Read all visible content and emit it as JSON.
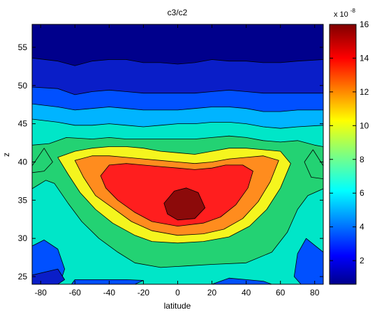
{
  "chart_data": {
    "type": "contourf",
    "title": "c3/c2",
    "xlabel": "latitude",
    "ylabel": "z",
    "xlim": [
      -85,
      85
    ],
    "ylim": [
      24,
      58
    ],
    "x_ticks": [
      -80,
      -60,
      -40,
      -20,
      0,
      20,
      40,
      60,
      80
    ],
    "y_ticks": [
      25,
      30,
      35,
      40,
      45,
      50,
      55
    ],
    "colorbar": {
      "range": [
        0.6,
        16
      ],
      "ticks": [
        2,
        4,
        6,
        8,
        10,
        12,
        14,
        16
      ],
      "exponent_label": "x 10",
      "exponent": "-8",
      "colormap": "jet"
    },
    "grid": false,
    "levels": [
      {
        "value": 1.5,
        "color": "#0a1ec8"
      },
      {
        "value": 3.5,
        "color": "#0050ff"
      },
      {
        "value": 5.5,
        "color": "#00b4ff"
      },
      {
        "value": 7.5,
        "color": "#00e6c8"
      },
      {
        "value": 9.5,
        "color": "#23d273"
      },
      {
        "value": 10.5,
        "color": "#f5f51e"
      },
      {
        "value": 12.5,
        "color": "#ff8c1e"
      },
      {
        "value": 14.5,
        "color": "#ff1e1e"
      },
      {
        "value": 15.5,
        "color": "#8c0a0a"
      }
    ],
    "background_color": "#00008c",
    "bands": [
      {
        "name": "band-2e-8",
        "level": 0,
        "outline": [
          [
            -85,
            53.6
          ],
          [
            -70,
            53.2
          ],
          [
            -60,
            52.6
          ],
          [
            -50,
            53.2
          ],
          [
            -40,
            53.4
          ],
          [
            -30,
            53.4
          ],
          [
            -20,
            53
          ],
          [
            -10,
            53
          ],
          [
            0,
            52.8
          ],
          [
            10,
            53
          ],
          [
            20,
            53.4
          ],
          [
            30,
            53.2
          ],
          [
            40,
            53.2
          ],
          [
            50,
            53
          ],
          [
            60,
            53
          ],
          [
            70,
            53.2
          ],
          [
            85,
            53.4
          ],
          [
            85,
            24
          ],
          [
            -85,
            24
          ]
        ]
      },
      {
        "name": "band-4e-8",
        "level": 1,
        "outline": [
          [
            -85,
            49.8
          ],
          [
            -70,
            49.6
          ],
          [
            -60,
            48.8
          ],
          [
            -50,
            49.2
          ],
          [
            -40,
            49.4
          ],
          [
            -30,
            49.2
          ],
          [
            -20,
            49
          ],
          [
            -10,
            49
          ],
          [
            0,
            49
          ],
          [
            10,
            49
          ],
          [
            20,
            49.2
          ],
          [
            30,
            49.4
          ],
          [
            40,
            49.2
          ],
          [
            50,
            49
          ],
          [
            60,
            49
          ],
          [
            70,
            49
          ],
          [
            85,
            49
          ],
          [
            85,
            24
          ],
          [
            -85,
            24
          ]
        ]
      },
      {
        "name": "band-6e-8",
        "level": 2,
        "outline": [
          [
            -85,
            47.6
          ],
          [
            -70,
            47.2
          ],
          [
            -60,
            46.8
          ],
          [
            -50,
            47
          ],
          [
            -40,
            47.2
          ],
          [
            -30,
            47
          ],
          [
            -20,
            46.8
          ],
          [
            -10,
            46.8
          ],
          [
            0,
            46.8
          ],
          [
            10,
            47
          ],
          [
            20,
            47.2
          ],
          [
            30,
            47.2
          ],
          [
            40,
            47
          ],
          [
            50,
            46.6
          ],
          [
            60,
            46.6
          ],
          [
            70,
            46.8
          ],
          [
            85,
            46.8
          ],
          [
            85,
            24
          ],
          [
            -85,
            24
          ]
        ]
      },
      {
        "name": "band-8e-8",
        "level": 3,
        "outline": [
          [
            -85,
            45.6
          ],
          [
            -70,
            45.2
          ],
          [
            -60,
            44.8
          ],
          [
            -50,
            44.8
          ],
          [
            -40,
            45
          ],
          [
            -30,
            44.8
          ],
          [
            -20,
            44.6
          ],
          [
            -10,
            44.8
          ],
          [
            0,
            45
          ],
          [
            10,
            45
          ],
          [
            20,
            45.2
          ],
          [
            30,
            45.2
          ],
          [
            40,
            45
          ],
          [
            50,
            44.6
          ],
          [
            60,
            44.4
          ],
          [
            70,
            44.6
          ],
          [
            85,
            44.8
          ],
          [
            85,
            24
          ],
          [
            -85,
            24
          ]
        ]
      },
      {
        "name": "band-10e-8",
        "level": 4,
        "outline": [
          [
            -85,
            42.2
          ],
          [
            -75,
            42.4
          ],
          [
            -65,
            43.2
          ],
          [
            -50,
            43
          ],
          [
            -40,
            43.2
          ],
          [
            -30,
            43
          ],
          [
            -20,
            43
          ],
          [
            -10,
            43
          ],
          [
            0,
            43
          ],
          [
            10,
            43
          ],
          [
            20,
            43.2
          ],
          [
            30,
            43.4
          ],
          [
            40,
            43.2
          ],
          [
            50,
            42.8
          ],
          [
            60,
            42.6
          ],
          [
            70,
            42.8
          ],
          [
            80,
            42.2
          ],
          [
            85,
            42
          ],
          [
            85,
            24
          ],
          [
            -85,
            24
          ]
        ]
      },
      {
        "name": "band-cyan-low",
        "level": 2,
        "outline": [
          [
            -85,
            33
          ],
          [
            -75,
            32.6
          ],
          [
            -65,
            31.6
          ],
          [
            -55,
            30
          ],
          [
            -52,
            26
          ],
          [
            -50,
            24.5
          ],
          [
            -20,
            24.5
          ],
          [
            0,
            24.5
          ],
          [
            20,
            24.5
          ],
          [
            40,
            24.6
          ],
          [
            55,
            25.2
          ],
          [
            62,
            28
          ],
          [
            68,
            31
          ],
          [
            78,
            32.6
          ],
          [
            85,
            32.2
          ],
          [
            85,
            24
          ],
          [
            -85,
            24
          ]
        ]
      },
      {
        "name": "band-green-low",
        "level": 3,
        "outline": [
          [
            -85,
            36.5
          ],
          [
            -77,
            37.6
          ],
          [
            -72,
            37.2
          ],
          [
            -64,
            34.6
          ],
          [
            -56,
            32.2
          ],
          [
            -46,
            30
          ],
          [
            -35,
            28.2
          ],
          [
            -25,
            26.8
          ],
          [
            -10,
            26.2
          ],
          [
            5,
            26.4
          ],
          [
            20,
            26.6
          ],
          [
            40,
            26.8
          ],
          [
            55,
            28.2
          ],
          [
            64,
            30.8
          ],
          [
            70,
            33.8
          ],
          [
            76,
            35.6
          ],
          [
            85,
            36.5
          ],
          [
            85,
            24
          ],
          [
            -85,
            24
          ]
        ]
      },
      {
        "name": "band-10e-8-inner",
        "level": 4,
        "outline": [
          [
            -85,
            39.5
          ],
          [
            -78,
            41.8
          ],
          [
            -73,
            40
          ],
          [
            -78,
            38.8
          ],
          [
            -85,
            38.6
          ]
        ]
      },
      {
        "name": "band-10e-8-inner-right",
        "level": 4,
        "outline": [
          [
            85,
            39.5
          ],
          [
            79,
            41.6
          ],
          [
            74,
            40
          ],
          [
            78,
            38
          ],
          [
            85,
            37.8
          ]
        ]
      },
      {
        "name": "band-12e-8",
        "level": 5,
        "outline": [
          [
            -70,
            40.6
          ],
          [
            -64,
            38.4
          ],
          [
            -57,
            36
          ],
          [
            -48,
            33.8
          ],
          [
            -38,
            32
          ],
          [
            -25,
            30.4
          ],
          [
            -15,
            29.6
          ],
          [
            0,
            29.4
          ],
          [
            15,
            29.6
          ],
          [
            30,
            30.2
          ],
          [
            42,
            31.6
          ],
          [
            52,
            33.8
          ],
          [
            60,
            36.6
          ],
          [
            66,
            39.8
          ],
          [
            60,
            41.4
          ],
          [
            50,
            41.6
          ],
          [
            40,
            41.8
          ],
          [
            30,
            41.8
          ],
          [
            20,
            41.4
          ],
          [
            10,
            41
          ],
          [
            0,
            41.2
          ],
          [
            -10,
            41.4
          ],
          [
            -20,
            41.8
          ],
          [
            -30,
            42
          ],
          [
            -40,
            42
          ],
          [
            -50,
            41.8
          ],
          [
            -60,
            41.4
          ]
        ]
      },
      {
        "name": "band-14e-8",
        "level": 6,
        "outline": [
          [
            -60,
            40.2
          ],
          [
            -55,
            38
          ],
          [
            -48,
            35.6
          ],
          [
            -38,
            34
          ],
          [
            -27,
            32.2
          ],
          [
            -15,
            31
          ],
          [
            0,
            30.4
          ],
          [
            15,
            30.6
          ],
          [
            27,
            31.2
          ],
          [
            38,
            32.6
          ],
          [
            47,
            34.8
          ],
          [
            54,
            37.4
          ],
          [
            59,
            40.2
          ],
          [
            50,
            40.8
          ],
          [
            40,
            40.6
          ],
          [
            30,
            40.4
          ],
          [
            20,
            40
          ],
          [
            10,
            39.8
          ],
          [
            0,
            40
          ],
          [
            -10,
            40.2
          ],
          [
            -20,
            40.4
          ],
          [
            -30,
            40.6
          ],
          [
            -40,
            40.8
          ],
          [
            -50,
            40.8
          ]
        ]
      },
      {
        "name": "band-16e-8-outer",
        "level": 7,
        "outline": [
          [
            -45,
            38.2
          ],
          [
            -42,
            36.6
          ],
          [
            -35,
            35
          ],
          [
            -25,
            33.4
          ],
          [
            -15,
            32.2
          ],
          [
            0,
            31.6
          ],
          [
            15,
            32
          ],
          [
            25,
            32.8
          ],
          [
            34,
            34.4
          ],
          [
            41,
            36.6
          ],
          [
            44,
            38.8
          ],
          [
            38,
            39.6
          ],
          [
            28,
            39.6
          ],
          [
            20,
            39.2
          ],
          [
            10,
            39
          ],
          [
            0,
            39.2
          ],
          [
            -10,
            39.4
          ],
          [
            -20,
            39.6
          ],
          [
            -30,
            39.8
          ],
          [
            -40,
            39.6
          ]
        ]
      },
      {
        "name": "band-peak",
        "level": 8,
        "outline": [
          [
            -8,
            34.6
          ],
          [
            -6,
            33.2
          ],
          [
            0,
            32.4
          ],
          [
            10,
            32.6
          ],
          [
            16,
            34
          ],
          [
            12,
            36
          ],
          [
            5,
            36.6
          ],
          [
            -2,
            36.2
          ]
        ]
      },
      {
        "name": "band-low-left-blue",
        "level": 1,
        "outline": [
          [
            -85,
            29
          ],
          [
            -78,
            29.8
          ],
          [
            -70,
            28.6
          ],
          [
            -66,
            26
          ],
          [
            -68,
            24.6
          ],
          [
            -72,
            24
          ],
          [
            -85,
            24
          ]
        ]
      },
      {
        "name": "band-low-left-navy",
        "level": 0,
        "outline": [
          [
            -85,
            25.2
          ],
          [
            -70,
            26
          ],
          [
            -66,
            24.6
          ],
          [
            -70,
            24
          ],
          [
            -85,
            24
          ]
        ]
      },
      {
        "name": "band-low-right-blue",
        "level": 1,
        "outline": [
          [
            85,
            28.2
          ],
          [
            75,
            30
          ],
          [
            70,
            28
          ],
          [
            68,
            25
          ],
          [
            72,
            24
          ],
          [
            85,
            24
          ]
        ]
      },
      {
        "name": "band-low-mid-blue",
        "level": 1,
        "outline": [
          [
            -62,
            24
          ],
          [
            -60,
            24.6
          ],
          [
            -45,
            24.6
          ],
          [
            -30,
            24.6
          ],
          [
            -20,
            24.5
          ],
          [
            -25,
            24
          ],
          [
            -62,
            24
          ]
        ]
      },
      {
        "name": "band-low-mid2-blue",
        "level": 1,
        "outline": [
          [
            20,
            24
          ],
          [
            30,
            24.8
          ],
          [
            40,
            24.6
          ],
          [
            50,
            24.4
          ],
          [
            55,
            24
          ]
        ]
      }
    ]
  }
}
